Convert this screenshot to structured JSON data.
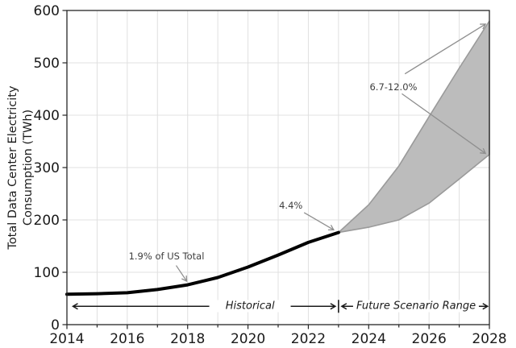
{
  "chart_data": {
    "type": "line",
    "title": "",
    "xlabel": "",
    "ylabel": "Total Data Center Electricity Consumption (TWh)",
    "ylabel_lines": [
      "Total Data Center Electricity",
      "Consumption (TWh)"
    ],
    "xlim": [
      2014,
      2028
    ],
    "ylim": [
      0,
      600
    ],
    "x_major_ticks": [
      2014,
      2016,
      2018,
      2020,
      2022,
      2024,
      2026,
      2028
    ],
    "x_minor_step": 1,
    "y_ticks": [
      0,
      100,
      200,
      300,
      400,
      500,
      600
    ],
    "grid": true,
    "legend": "none",
    "series": [
      {
        "name": "Historical",
        "type": "line",
        "color": "#000000",
        "width": 4,
        "x": [
          2014,
          2015,
          2016,
          2017,
          2018,
          2019,
          2020,
          2021,
          2022,
          2023
        ],
        "y": [
          58,
          59,
          61,
          67,
          76,
          90,
          110,
          133,
          157,
          176
        ]
      },
      {
        "name": "Future Scenario Range",
        "type": "band",
        "fill": "#bcbcbc",
        "edge": "#9a9a9a",
        "x": [
          2023,
          2024,
          2025,
          2026,
          2027,
          2028
        ],
        "y_low": [
          176,
          186,
          200,
          232,
          278,
          325
        ],
        "y_high": [
          176,
          229,
          303,
          397,
          490,
          580
        ]
      }
    ],
    "annotations": [
      {
        "text": "1.9% of US Total",
        "text_x": 2017.3,
        "text_y": 131,
        "arrows": [
          {
            "x1": 2017.62,
            "y1": 113,
            "x2": 2017.97,
            "y2": 83
          }
        ]
      },
      {
        "text": "4.4%",
        "text_x": 2021.42,
        "text_y": 228,
        "arrows": [
          {
            "x1": 2021.86,
            "y1": 214,
            "x2": 2022.84,
            "y2": 181
          }
        ]
      },
      {
        "text": "6.7-12.0%",
        "text_x": 2024.82,
        "text_y": 454,
        "arrows": [
          {
            "x1": 2025.2,
            "y1": 479,
            "x2": 2027.87,
            "y2": 574
          },
          {
            "x1": 2025.1,
            "y1": 441,
            "x2": 2027.87,
            "y2": 327
          }
        ]
      }
    ],
    "range_markers": {
      "historical_label": "Historical",
      "future_label": "Future Scenario Range",
      "start": 2014.2,
      "split": 2023,
      "end": 2027.94,
      "hist_label_x": 2020.07,
      "future_label_x": 2025.57,
      "y": 35
    },
    "style": {
      "background": "#ffffff",
      "grid_color": "#e0e0e0",
      "spine_color": "#262626",
      "tick_label_color": "#1a1a1a",
      "annotation_text_color": "#3d3d3d",
      "annotation_arrow_color": "#8f8f8f",
      "range_arrow_color": "#1a1a1a"
    }
  }
}
